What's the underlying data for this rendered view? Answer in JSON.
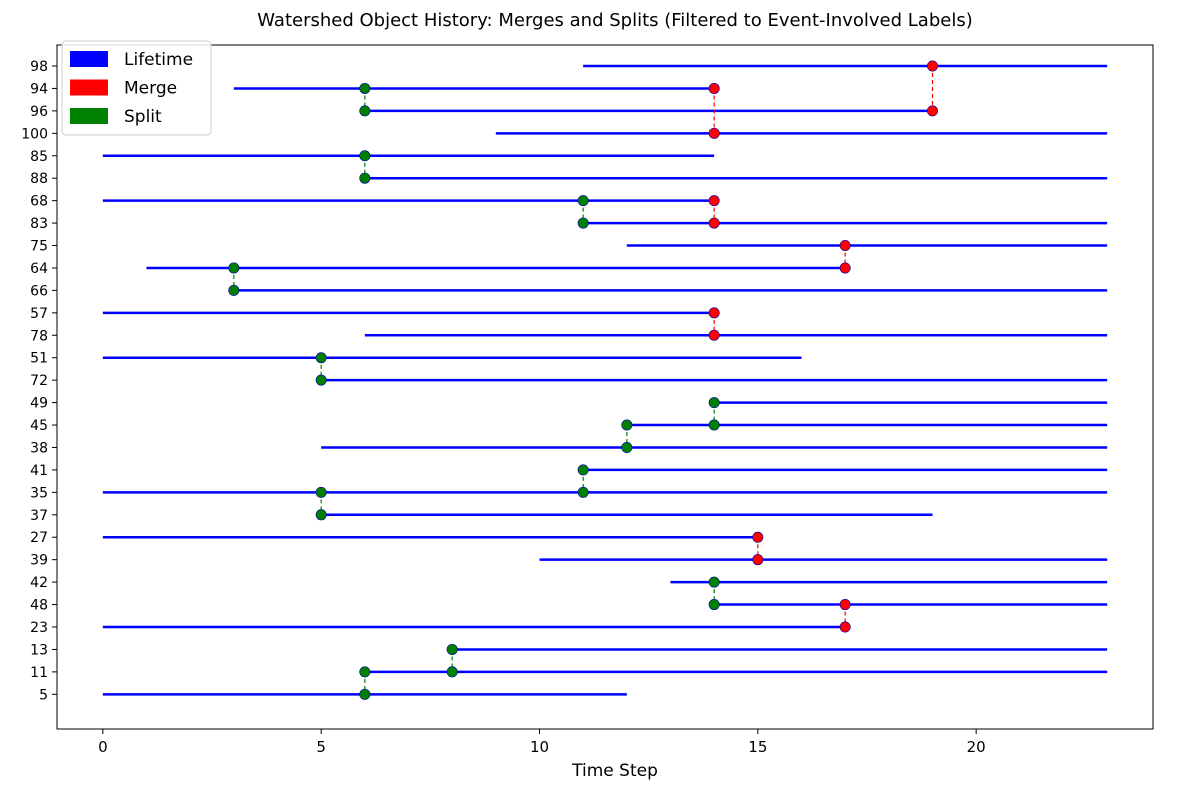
{
  "chart_data": {
    "type": "timeline",
    "title": "Watershed Object History: Merges and Splits (Filtered to Event-Involved Labels)",
    "xlabel": "Time Step",
    "ylabel": "",
    "xlim": [
      -1.05,
      24.05
    ],
    "xticks": [
      0,
      5,
      10,
      15,
      20
    ],
    "grid": false,
    "legend_position": "top-left",
    "legend": [
      {
        "name": "Lifetime",
        "color": "#0000ff"
      },
      {
        "name": "Merge",
        "color": "#ff0000"
      },
      {
        "name": "Split",
        "color": "#008000"
      }
    ],
    "labels": [
      "98",
      "94",
      "96",
      "100",
      "85",
      "88",
      "68",
      "83",
      "75",
      "64",
      "66",
      "57",
      "78",
      "51",
      "72",
      "49",
      "45",
      "38",
      "41",
      "35",
      "37",
      "27",
      "39",
      "42",
      "48",
      "23",
      "13",
      "11",
      "5"
    ],
    "lifetimes": [
      {
        "label": "98",
        "start": 11,
        "end": 23
      },
      {
        "label": "94",
        "start": 3,
        "end": 14
      },
      {
        "label": "96",
        "start": 6,
        "end": 19
      },
      {
        "label": "100",
        "start": 9,
        "end": 23
      },
      {
        "label": "85",
        "start": 0,
        "end": 14
      },
      {
        "label": "88",
        "start": 6,
        "end": 23
      },
      {
        "label": "68",
        "start": 0,
        "end": 14
      },
      {
        "label": "83",
        "start": 11,
        "end": 23
      },
      {
        "label": "75",
        "start": 12,
        "end": 23
      },
      {
        "label": "64",
        "start": 1,
        "end": 17
      },
      {
        "label": "66",
        "start": 3,
        "end": 23
      },
      {
        "label": "57",
        "start": 0,
        "end": 14
      },
      {
        "label": "78",
        "start": 6,
        "end": 23
      },
      {
        "label": "51",
        "start": 0,
        "end": 16
      },
      {
        "label": "72",
        "start": 5,
        "end": 23
      },
      {
        "label": "49",
        "start": 14,
        "end": 23
      },
      {
        "label": "45",
        "start": 12,
        "end": 23
      },
      {
        "label": "38",
        "start": 5,
        "end": 23
      },
      {
        "label": "41",
        "start": 11,
        "end": 23
      },
      {
        "label": "35",
        "start": 0,
        "end": 23
      },
      {
        "label": "37",
        "start": 5,
        "end": 19
      },
      {
        "label": "27",
        "start": 0,
        "end": 15
      },
      {
        "label": "39",
        "start": 10,
        "end": 23
      },
      {
        "label": "42",
        "start": 13,
        "end": 23
      },
      {
        "label": "48",
        "start": 14,
        "end": 23
      },
      {
        "label": "23",
        "start": 0,
        "end": 17
      },
      {
        "label": "13",
        "start": 8,
        "end": 23
      },
      {
        "label": "11",
        "start": 6,
        "end": 23
      },
      {
        "label": "5",
        "start": 0,
        "end": 12
      }
    ],
    "events": [
      {
        "type": "merge",
        "time": 19,
        "labels": [
          "98",
          "96"
        ]
      },
      {
        "type": "split",
        "time": 6,
        "labels": [
          "94",
          "96"
        ]
      },
      {
        "type": "merge",
        "time": 14,
        "labels": [
          "94",
          "100"
        ]
      },
      {
        "type": "split",
        "time": 6,
        "labels": [
          "85",
          "88"
        ]
      },
      {
        "type": "split",
        "time": 11,
        "labels": [
          "68",
          "83"
        ]
      },
      {
        "type": "merge",
        "time": 14,
        "labels": [
          "68",
          "83"
        ]
      },
      {
        "type": "merge",
        "time": 17,
        "labels": [
          "75",
          "64"
        ]
      },
      {
        "type": "split",
        "time": 3,
        "labels": [
          "64",
          "66"
        ]
      },
      {
        "type": "merge",
        "time": 14,
        "labels": [
          "57",
          "78"
        ]
      },
      {
        "type": "split",
        "time": 5,
        "labels": [
          "51",
          "72"
        ]
      },
      {
        "type": "split",
        "time": 14,
        "labels": [
          "49",
          "45"
        ]
      },
      {
        "type": "split",
        "time": 12,
        "labels": [
          "45",
          "38"
        ]
      },
      {
        "type": "split",
        "time": 11,
        "labels": [
          "41",
          "35"
        ]
      },
      {
        "type": "split",
        "time": 5,
        "labels": [
          "35",
          "37"
        ]
      },
      {
        "type": "merge",
        "time": 15,
        "labels": [
          "27",
          "39"
        ]
      },
      {
        "type": "split",
        "time": 14,
        "labels": [
          "42",
          "48"
        ]
      },
      {
        "type": "merge",
        "time": 17,
        "labels": [
          "48",
          "23"
        ]
      },
      {
        "type": "split",
        "time": 8,
        "labels": [
          "13",
          "11"
        ]
      },
      {
        "type": "split",
        "time": 6,
        "labels": [
          "11",
          "5"
        ]
      }
    ]
  }
}
